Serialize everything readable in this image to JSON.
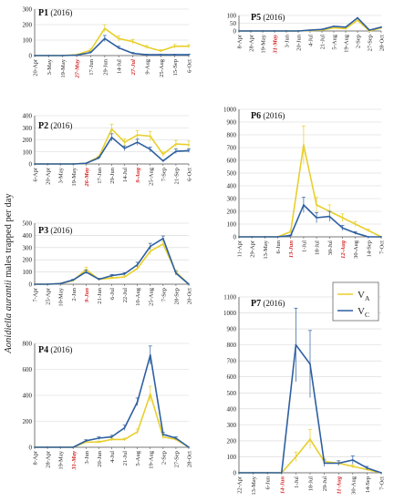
{
  "figure": {
    "ylabel_italic": "Aonidiella aurantii",
    "ylabel_rest": " males trapped per day"
  },
  "legend": {
    "entries": [
      {
        "name": "V",
        "sub": "A",
        "color": "#e8cf2c"
      },
      {
        "name": "V",
        "sub": "C",
        "color": "#2d5fa0"
      }
    ]
  },
  "chart_data": [
    {
      "type": "line",
      "title": "P1",
      "year": "(2016)",
      "ylim": [
        0,
        300
      ],
      "yticks": [
        0,
        100,
        200,
        300
      ],
      "x": [
        "20-Apr",
        "3-May",
        "19-May",
        "27-May",
        "17-Jun",
        "29-Jun",
        "14-Jul",
        "27-Jul",
        "9-Aug",
        "25-Aug",
        "15-Sep",
        "6-Oct"
      ],
      "x_emphasized": [
        "27-May",
        "27-Jul"
      ],
      "series": [
        {
          "name": "VA",
          "values": [
            0,
            0,
            0,
            5,
            35,
            175,
            110,
            90,
            55,
            30,
            60,
            60
          ],
          "errors": [
            0,
            0,
            0,
            0,
            8,
            25,
            18,
            15,
            10,
            8,
            12,
            10
          ]
        },
        {
          "name": "VC",
          "values": [
            0,
            0,
            0,
            3,
            20,
            110,
            50,
            15,
            5,
            5,
            5,
            5
          ],
          "errors": [
            0,
            0,
            0,
            0,
            5,
            20,
            10,
            5,
            3,
            3,
            3,
            3
          ]
        }
      ]
    },
    {
      "type": "line",
      "title": "P2",
      "year": "(2016)",
      "ylim": [
        0,
        400
      ],
      "yticks": [
        0,
        100,
        200,
        300,
        400
      ],
      "x": [
        "6-Apr",
        "20-Apr",
        "3-May",
        "19-May",
        "26-May",
        "17-Jun",
        "29-Jun",
        "14-Jul",
        "9-Aug",
        "25-Aug",
        "7-Sep",
        "21-Sep",
        "6-Oct"
      ],
      "x_emphasized": [
        "26-May",
        "9-Aug"
      ],
      "series": [
        {
          "name": "VA",
          "values": [
            0,
            0,
            0,
            0,
            5,
            60,
            290,
            180,
            240,
            230,
            80,
            165,
            160
          ],
          "errors": [
            0,
            0,
            0,
            0,
            0,
            8,
            40,
            30,
            35,
            40,
            20,
            30,
            30
          ]
        },
        {
          "name": "VC",
          "values": [
            0,
            0,
            0,
            0,
            5,
            50,
            220,
            130,
            180,
            120,
            25,
            105,
            110
          ],
          "errors": [
            0,
            0,
            0,
            0,
            0,
            8,
            30,
            20,
            25,
            20,
            8,
            20,
            15
          ]
        }
      ]
    },
    {
      "type": "line",
      "title": "P3",
      "year": "(2016)",
      "ylim": [
        0,
        500
      ],
      "yticks": [
        0,
        100,
        200,
        300,
        400,
        500
      ],
      "x": [
        "7-Apr",
        "25-Apr",
        "10-May",
        "2-Jun",
        "9-Jun",
        "21-Jun",
        "6-Jul",
        "22-Jul",
        "10-Aug",
        "25-Aug",
        "7-Sep",
        "28-Sep",
        "20-Oct"
      ],
      "x_emphasized": [
        "9-Jun"
      ],
      "series": [
        {
          "name": "VA",
          "values": [
            0,
            0,
            5,
            30,
            120,
            40,
            50,
            60,
            130,
            270,
            330,
            100,
            0
          ],
          "errors": [
            0,
            0,
            0,
            5,
            20,
            8,
            8,
            10,
            15,
            30,
            20,
            15,
            0
          ]
        },
        {
          "name": "VC",
          "values": [
            0,
            0,
            5,
            35,
            100,
            40,
            70,
            85,
            160,
            310,
            375,
            90,
            0
          ],
          "errors": [
            0,
            0,
            0,
            5,
            15,
            8,
            10,
            10,
            20,
            25,
            20,
            15,
            0
          ]
        }
      ]
    },
    {
      "type": "line",
      "title": "P4",
      "year": "(2016)",
      "ylim": [
        0,
        800
      ],
      "yticks": [
        0,
        200,
        400,
        600,
        800
      ],
      "x": [
        "8-Apr",
        "28-Apr",
        "19-May",
        "31-May",
        "3-Jun",
        "20-Jun",
        "4-Jul",
        "21-Jul",
        "5-Aug",
        "19-Aug",
        "2-Sep",
        "27-Sep",
        "28-Oct"
      ],
      "x_emphasized": [
        "31-May"
      ],
      "series": [
        {
          "name": "VA",
          "values": [
            0,
            0,
            0,
            0,
            40,
            40,
            60,
            60,
            120,
            410,
            80,
            60,
            0
          ],
          "errors": [
            0,
            0,
            0,
            0,
            5,
            8,
            10,
            10,
            20,
            60,
            15,
            10,
            0
          ]
        },
        {
          "name": "VC",
          "values": [
            0,
            0,
            0,
            0,
            50,
            70,
            80,
            150,
            350,
            710,
            100,
            70,
            0
          ],
          "errors": [
            0,
            0,
            0,
            0,
            8,
            10,
            12,
            20,
            30,
            70,
            15,
            10,
            0
          ]
        }
      ]
    },
    {
      "type": "line",
      "title": "P5",
      "year": "(2016)",
      "ylim": [
        0,
        100
      ],
      "yticks": [
        0,
        50,
        100
      ],
      "x": [
        "8-Apr",
        "28-Apr",
        "19-May",
        "31-May",
        "3-Jun",
        "20-Jun",
        "4-Jul",
        "21-Jul",
        "5-Aug",
        "19-Aug",
        "2-Sep",
        "27-Sep",
        "28-Oct"
      ],
      "x_emphasized": [
        "31-May"
      ],
      "series": [
        {
          "name": "VA",
          "values": [
            0,
            0,
            0,
            0,
            0,
            0,
            3,
            5,
            20,
            15,
            70,
            0,
            20
          ],
          "errors": [
            0,
            0,
            0,
            0,
            0,
            0,
            0,
            0,
            0,
            0,
            0,
            0,
            0
          ]
        },
        {
          "name": "VC",
          "values": [
            0,
            0,
            0,
            0,
            0,
            0,
            5,
            10,
            30,
            25,
            85,
            5,
            25
          ],
          "errors": [
            0,
            0,
            0,
            0,
            0,
            0,
            0,
            0,
            0,
            0,
            0,
            0,
            0
          ]
        }
      ]
    },
    {
      "type": "line",
      "title": "P6",
      "year": "(2016)",
      "ylim": [
        0,
        1000
      ],
      "yticks": [
        0,
        100,
        200,
        300,
        400,
        500,
        600,
        700,
        800,
        900,
        1000
      ],
      "x": [
        "11-Apr",
        "29-Apr",
        "13-May",
        "6-Jun",
        "13-Jun",
        "1-Jul",
        "18-Jul",
        "30-Jul",
        "12-Aug",
        "30-Aug",
        "14-Sep",
        "7-Oct"
      ],
      "x_emphasized": [
        "13-Jun",
        "12-Aug"
      ],
      "series": [
        {
          "name": "VA",
          "values": [
            0,
            0,
            0,
            0,
            40,
            720,
            250,
            200,
            150,
            100,
            50,
            0
          ],
          "errors": [
            0,
            0,
            0,
            0,
            10,
            150,
            60,
            50,
            30,
            20,
            10,
            0
          ]
        },
        {
          "name": "VC",
          "values": [
            0,
            0,
            0,
            0,
            10,
            250,
            150,
            160,
            70,
            30,
            0,
            0
          ],
          "errors": [
            0,
            0,
            0,
            0,
            5,
            60,
            40,
            40,
            20,
            10,
            0,
            0
          ]
        }
      ]
    },
    {
      "type": "line",
      "title": "P7",
      "year": "(2016)",
      "ylim": [
        0,
        1100
      ],
      "yticks": [
        0,
        100,
        200,
        300,
        400,
        500,
        600,
        700,
        800,
        900,
        1000,
        1100
      ],
      "x": [
        "22-Apr",
        "13-May",
        "6-Jun",
        "14-Jun",
        "1-Jul",
        "18-Jul",
        "29-Jul",
        "11-Aug",
        "30-Aug",
        "14-Sep",
        "7-Oct"
      ],
      "x_emphasized": [
        "14-Jun",
        "11-Aug"
      ],
      "series": [
        {
          "name": "VA",
          "values": [
            0,
            0,
            0,
            0,
            100,
            210,
            70,
            60,
            40,
            20,
            0
          ],
          "errors": [
            0,
            0,
            0,
            0,
            30,
            60,
            20,
            15,
            10,
            5,
            0
          ]
        },
        {
          "name": "VC",
          "values": [
            0,
            0,
            0,
            0,
            800,
            680,
            60,
            60,
            80,
            30,
            0
          ],
          "errors": [
            0,
            0,
            0,
            0,
            230,
            210,
            20,
            15,
            25,
            10,
            0
          ]
        }
      ]
    }
  ]
}
